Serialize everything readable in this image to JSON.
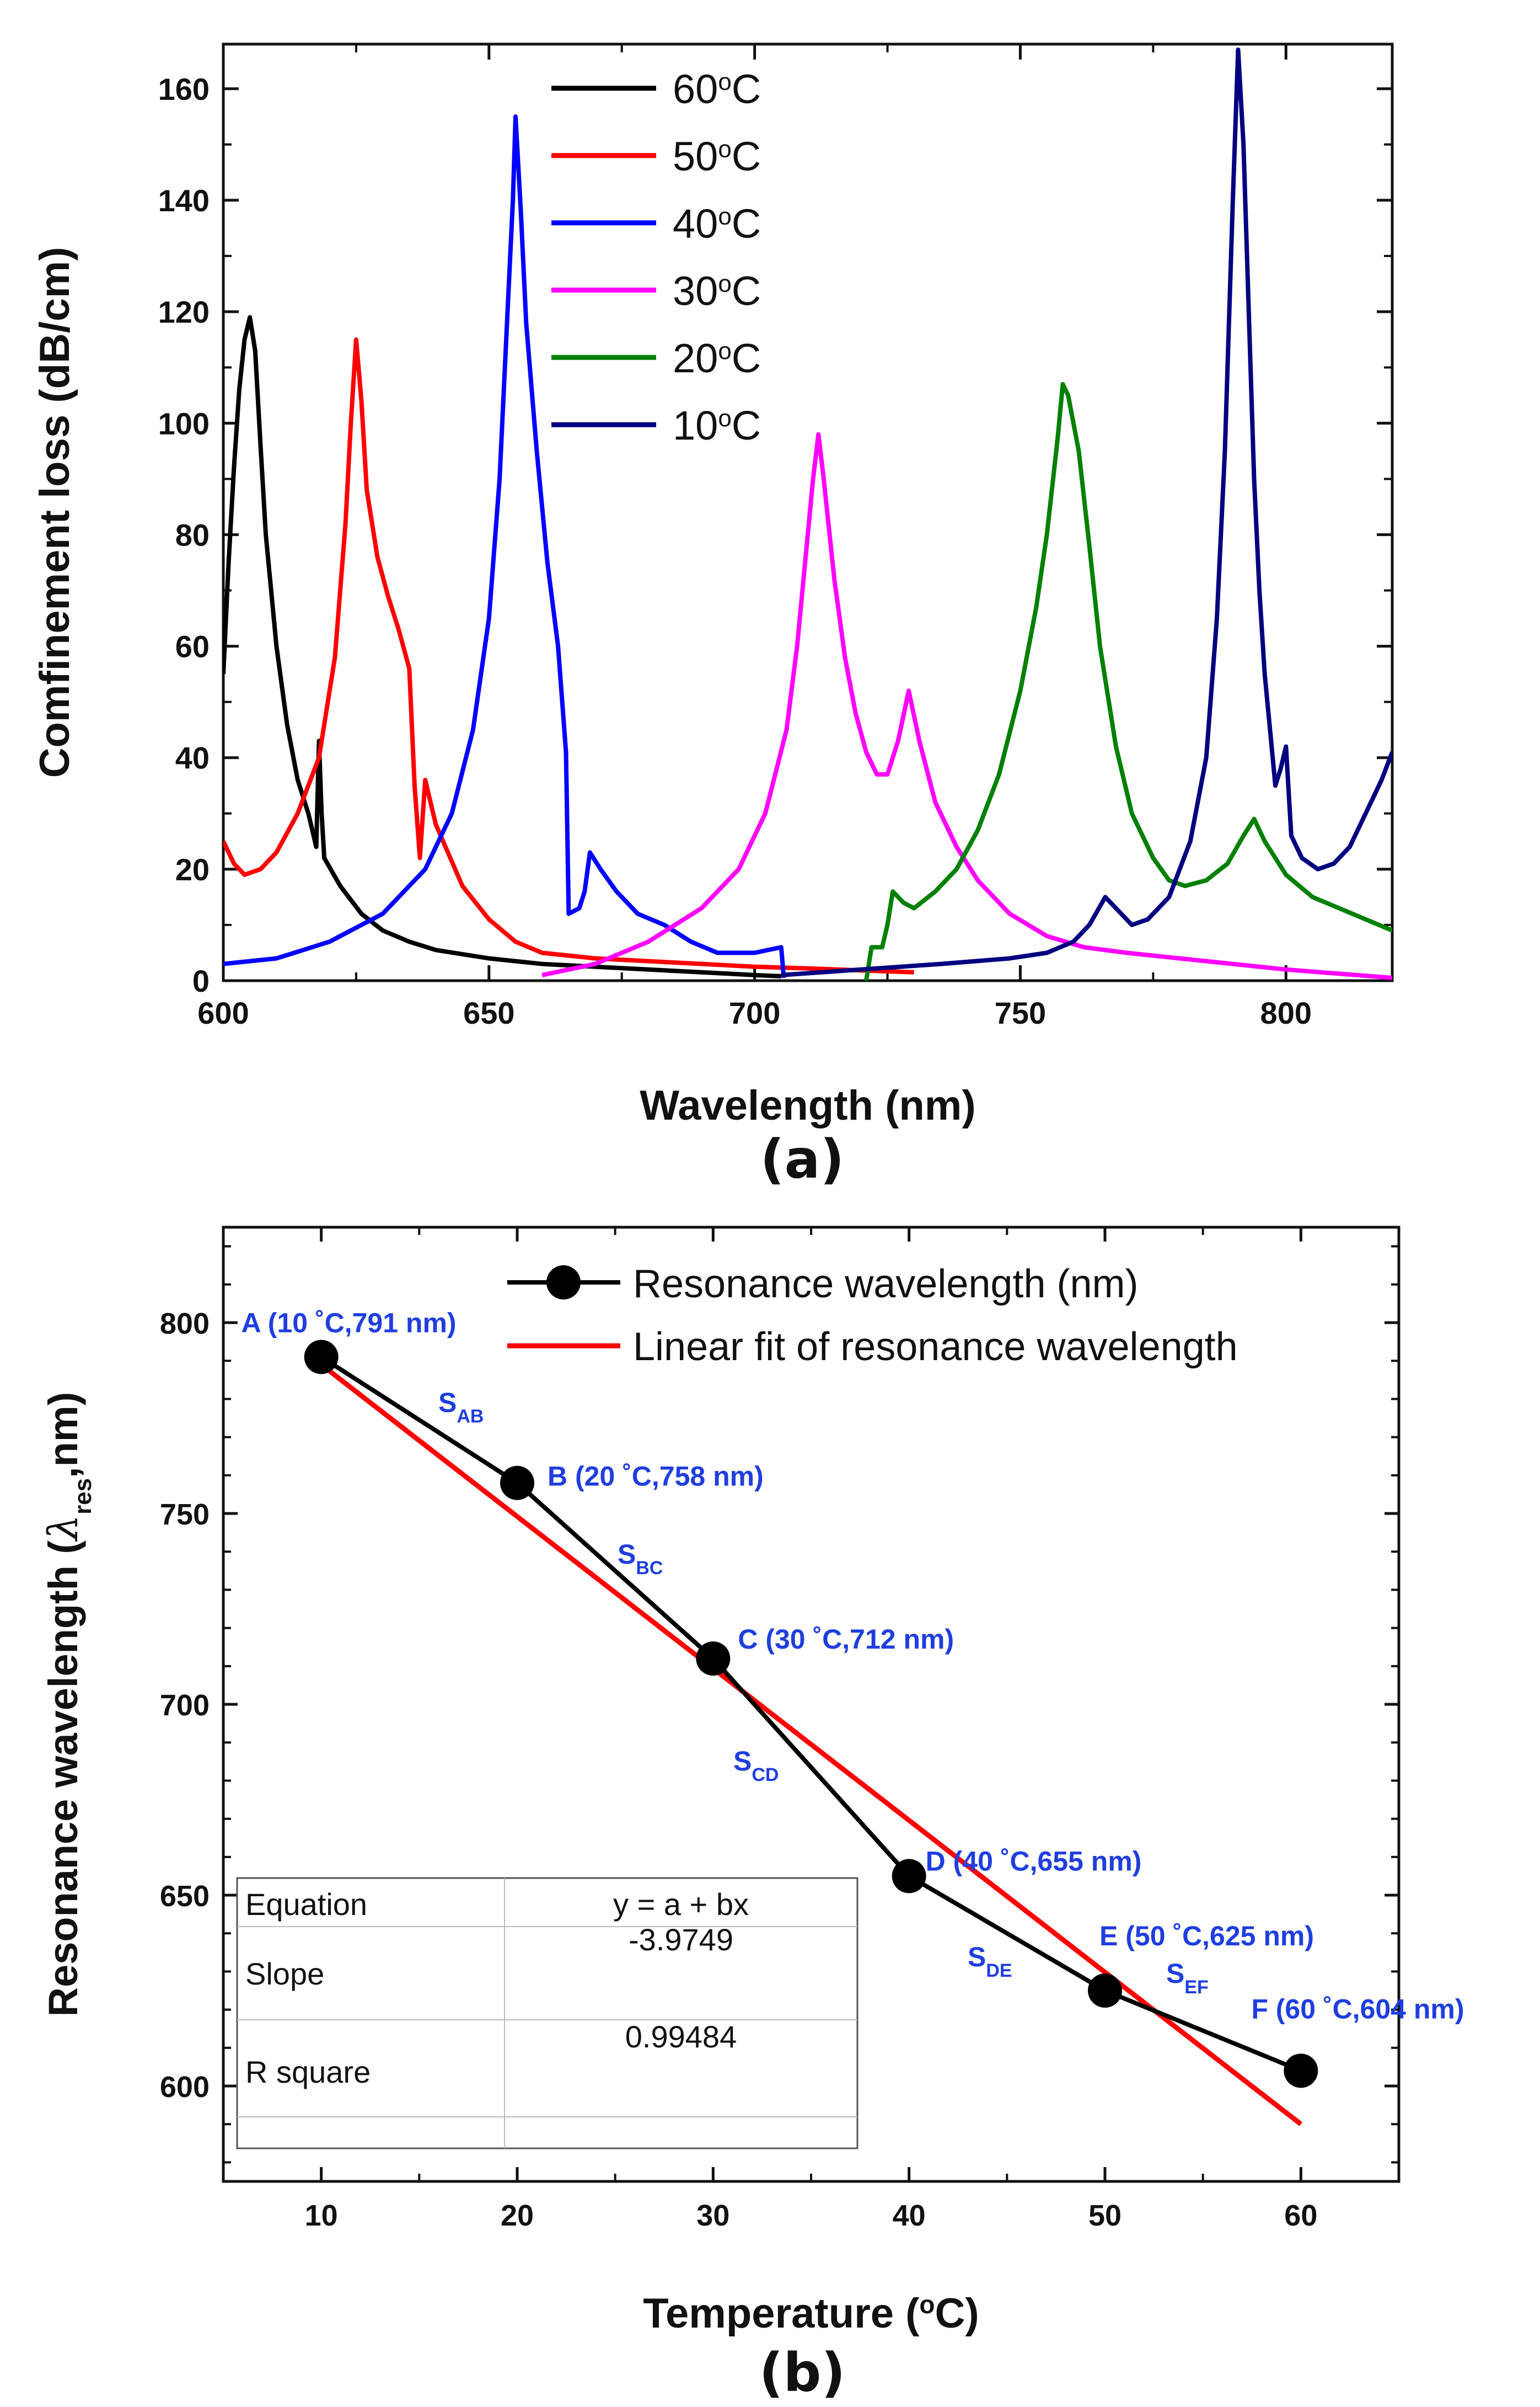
{
  "chart_data": [
    {
      "id": "a",
      "type": "line",
      "panel_label": "(a)",
      "xlabel": "Wavelength (nm)",
      "ylabel": "Comfinement loss (dB/cm)",
      "xlim": [
        600,
        820
      ],
      "ylim": [
        0,
        168
      ],
      "xticks": [
        600,
        650,
        700,
        750,
        800
      ],
      "yticks": [
        0,
        20,
        40,
        60,
        80,
        100,
        120,
        140,
        160
      ],
      "legend_position": "top-center",
      "series": [
        {
          "name": "60°C",
          "base": "60",
          "color": "#000000",
          "points": [
            [
              600,
              55
            ],
            [
              601,
              75
            ],
            [
              602,
              92
            ],
            [
              603,
              106
            ],
            [
              604,
              115
            ],
            [
              605,
              119
            ],
            [
              606,
              113
            ],
            [
              607,
              96
            ],
            [
              608,
              80
            ],
            [
              610,
              60
            ],
            [
              612,
              46
            ],
            [
              614,
              36
            ],
            [
              616,
              30
            ],
            [
              617,
              26
            ],
            [
              617.5,
              24
            ],
            [
              618,
              43
            ],
            [
              618.5,
              30
            ],
            [
              619,
              22
            ],
            [
              622,
              17
            ],
            [
              626,
              12
            ],
            [
              630,
              9
            ],
            [
              635,
              7
            ],
            [
              640,
              5.5
            ],
            [
              650,
              4
            ],
            [
              660,
              3
            ],
            [
              670,
              2.5
            ],
            [
              680,
              2
            ],
            [
              690,
              1.5
            ],
            [
              700,
              1
            ],
            [
              705,
              0.8
            ]
          ]
        },
        {
          "name": "50°C",
          "base": "50",
          "color": "#ff0000",
          "points": [
            [
              600,
              25
            ],
            [
              602,
              21
            ],
            [
              604,
              19
            ],
            [
              607,
              20
            ],
            [
              610,
              23
            ],
            [
              614,
              30
            ],
            [
              618,
              40
            ],
            [
              621,
              58
            ],
            [
              623,
              82
            ],
            [
              624,
              100
            ],
            [
              625,
              115
            ],
            [
              626,
              104
            ],
            [
              627,
              88
            ],
            [
              629,
              76
            ],
            [
              631,
              69
            ],
            [
              633,
              63
            ],
            [
              635,
              56
            ],
            [
              636,
              35
            ],
            [
              637,
              22
            ],
            [
              638,
              36
            ],
            [
              640,
              28
            ],
            [
              645,
              17
            ],
            [
              650,
              11
            ],
            [
              655,
              7
            ],
            [
              660,
              5
            ],
            [
              670,
              4
            ],
            [
              680,
              3.5
            ],
            [
              700,
              2.5
            ],
            [
              710,
              2.2
            ],
            [
              730,
              1.5
            ]
          ]
        },
        {
          "name": "40°C",
          "base": "40",
          "color": "#0000ff",
          "points": [
            [
              600,
              3
            ],
            [
              610,
              4
            ],
            [
              620,
              7
            ],
            [
              630,
              12
            ],
            [
              638,
              20
            ],
            [
              643,
              30
            ],
            [
              647,
              45
            ],
            [
              650,
              65
            ],
            [
              652,
              90
            ],
            [
              653.5,
              120
            ],
            [
              654.5,
              140
            ],
            [
              655,
              155
            ],
            [
              656,
              138
            ],
            [
              657,
              118
            ],
            [
              659,
              95
            ],
            [
              661,
              75
            ],
            [
              663,
              60
            ],
            [
              664.5,
              41
            ],
            [
              665,
              12
            ],
            [
              667,
              13
            ],
            [
              668,
              16
            ],
            [
              669,
              23
            ],
            [
              671,
              20
            ],
            [
              674,
              16
            ],
            [
              678,
              12
            ],
            [
              683,
              10
            ],
            [
              688,
              7
            ],
            [
              693,
              5
            ],
            [
              700,
              5
            ],
            [
              705,
              6
            ],
            [
              705.5,
              0.5
            ]
          ]
        },
        {
          "name": "30°C",
          "base": "30",
          "color": "#ff00ff",
          "points": [
            [
              660,
              1
            ],
            [
              670,
              3
            ],
            [
              680,
              7
            ],
            [
              690,
              13
            ],
            [
              697,
              20
            ],
            [
              702,
              30
            ],
            [
              706,
              45
            ],
            [
              708,
              60
            ],
            [
              710,
              80
            ],
            [
              711,
              90
            ],
            [
              712,
              98
            ],
            [
              713,
              90
            ],
            [
              715,
              72
            ],
            [
              717,
              58
            ],
            [
              719,
              48
            ],
            [
              721,
              41
            ],
            [
              723,
              37
            ],
            [
              725,
              37
            ],
            [
              727,
              43
            ],
            [
              729,
              52
            ],
            [
              731,
              43
            ],
            [
              734,
              32
            ],
            [
              738,
              24
            ],
            [
              742,
              18
            ],
            [
              748,
              12
            ],
            [
              755,
              8
            ],
            [
              762,
              6
            ],
            [
              770,
              5
            ],
            [
              780,
              4
            ],
            [
              800,
              2
            ],
            [
              820,
              0.5
            ]
          ]
        },
        {
          "name": "20°C",
          "base": "20",
          "color": "#008000",
          "points": [
            [
              721,
              0
            ],
            [
              722,
              6
            ],
            [
              724,
              6
            ],
            [
              725,
              10
            ],
            [
              726,
              16
            ],
            [
              728,
              14
            ],
            [
              730,
              13
            ],
            [
              734,
              16
            ],
            [
              738,
              20
            ],
            [
              742,
              27
            ],
            [
              746,
              37
            ],
            [
              750,
              52
            ],
            [
              753,
              67
            ],
            [
              755,
              80
            ],
            [
              757,
              97
            ],
            [
              758,
              107
            ],
            [
              759,
              105
            ],
            [
              761,
              95
            ],
            [
              763,
              78
            ],
            [
              765,
              60
            ],
            [
              768,
              42
            ],
            [
              771,
              30
            ],
            [
              775,
              22
            ],
            [
              778,
              18
            ],
            [
              781,
              17
            ],
            [
              785,
              18
            ],
            [
              789,
              21
            ],
            [
              792,
              26
            ],
            [
              794,
              29
            ],
            [
              796,
              25
            ],
            [
              800,
              19
            ],
            [
              805,
              15
            ],
            [
              810,
              13
            ],
            [
              815,
              11
            ],
            [
              820,
              9
            ]
          ]
        },
        {
          "name": "10°C",
          "base": "10",
          "color": "#000080",
          "points": [
            [
              705,
              1
            ],
            [
              720,
              2
            ],
            [
              735,
              3
            ],
            [
              748,
              4
            ],
            [
              755,
              5
            ],
            [
              760,
              7
            ],
            [
              763,
              10
            ],
            [
              766,
              15
            ],
            [
              768,
              13
            ],
            [
              771,
              10
            ],
            [
              774,
              11
            ],
            [
              778,
              15
            ],
            [
              782,
              25
            ],
            [
              785,
              40
            ],
            [
              787,
              65
            ],
            [
              788.5,
              95
            ],
            [
              790,
              140
            ],
            [
              791,
              167
            ],
            [
              792,
              150
            ],
            [
              793,
              120
            ],
            [
              794,
              90
            ],
            [
              795,
              70
            ],
            [
              796,
              55
            ],
            [
              797,
              45
            ],
            [
              798,
              35
            ],
            [
              799,
              38
            ],
            [
              800,
              42
            ],
            [
              801,
              26
            ],
            [
              803,
              22
            ],
            [
              806,
              20
            ],
            [
              809,
              21
            ],
            [
              812,
              24
            ],
            [
              815,
              30
            ],
            [
              818,
              36
            ],
            [
              820,
              41
            ]
          ]
        }
      ]
    },
    {
      "id": "b",
      "type": "scatter",
      "panel_label": "(b)",
      "xlabel": "Temperature (°C)",
      "ylabel_main": "Resonance wavelength (",
      "ylabel_lambda": "λ",
      "ylabel_sub": "res",
      "ylabel_end": ",nm)",
      "xlim": [
        5,
        65
      ],
      "ylim": [
        575,
        825
      ],
      "xticks": [
        10,
        20,
        30,
        40,
        50,
        60
      ],
      "yticks": [
        600,
        650,
        700,
        750,
        800
      ],
      "legend_position": "top-right",
      "legend": [
        "Resonance wavelength (nm)",
        "Linear fit of resonance wavelength"
      ],
      "x": [
        10,
        20,
        30,
        40,
        50,
        60
      ],
      "y": [
        791,
        758,
        712,
        655,
        625,
        604
      ],
      "point_labels": [
        "A (10 ˚C,791 nm)",
        "B (20 ˚C,758 nm)",
        "C (30 ˚C,712 nm)",
        "D (40 ˚C,655 nm)",
        "E (50 ˚C,625 nm)",
        "F (60 ˚C,604 nm)"
      ],
      "segment_labels": [
        {
          "s": "S",
          "sub": "AB"
        },
        {
          "s": "S",
          "sub": "BC"
        },
        {
          "s": "S",
          "sub": "CD"
        },
        {
          "s": "S",
          "sub": "DE"
        },
        {
          "s": "S",
          "sub": "EF"
        }
      ],
      "fit": {
        "x": [
          10,
          60
        ],
        "y": [
          789,
          590
        ]
      },
      "fit_table": {
        "rows": [
          [
            "Equation",
            "y = a + bx"
          ],
          [
            "Slope",
            "-3.9749"
          ],
          [
            "R square",
            "0.99484"
          ]
        ]
      }
    }
  ]
}
